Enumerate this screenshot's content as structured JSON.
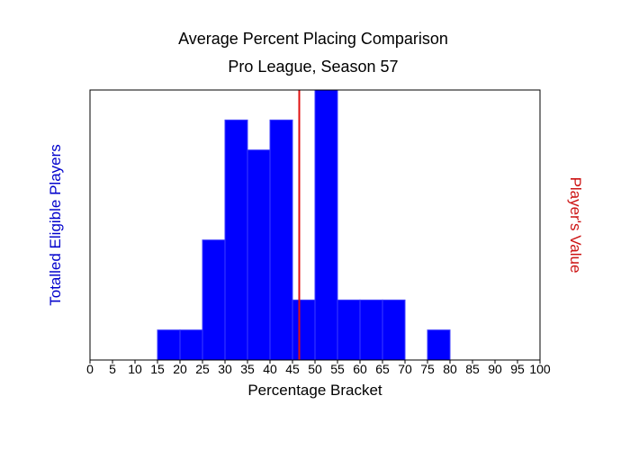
{
  "chart_data": {
    "type": "bar",
    "title": "Average Percent Placing Comparison",
    "subtitle": "Pro League, Season 57",
    "xlabel": "Percentage Bracket",
    "ylabel_left": "Totalled Eligible Players",
    "ylabel_right": "Player's Value",
    "xlim": [
      0,
      100
    ],
    "ylim": [
      0,
      9
    ],
    "bin_width": 5,
    "x_ticks": [
      0,
      5,
      10,
      15,
      20,
      25,
      30,
      35,
      40,
      45,
      50,
      55,
      60,
      65,
      70,
      75,
      80,
      85,
      90,
      95,
      100
    ],
    "bins": [
      {
        "start": 15,
        "value": 1
      },
      {
        "start": 20,
        "value": 1
      },
      {
        "start": 25,
        "value": 4
      },
      {
        "start": 30,
        "value": 8
      },
      {
        "start": 35,
        "value": 7
      },
      {
        "start": 40,
        "value": 8
      },
      {
        "start": 45,
        "value": 2
      },
      {
        "start": 50,
        "value": 9
      },
      {
        "start": 55,
        "value": 2
      },
      {
        "start": 60,
        "value": 2
      },
      {
        "start": 65,
        "value": 2
      },
      {
        "start": 75,
        "value": 1
      }
    ],
    "player_value": 46.5,
    "colors": {
      "bars": "#0000ff",
      "bar_edges": "#3c3cff",
      "player_line": "#e01010",
      "left_label": "#0000cc",
      "right_label": "#cc1111"
    }
  }
}
